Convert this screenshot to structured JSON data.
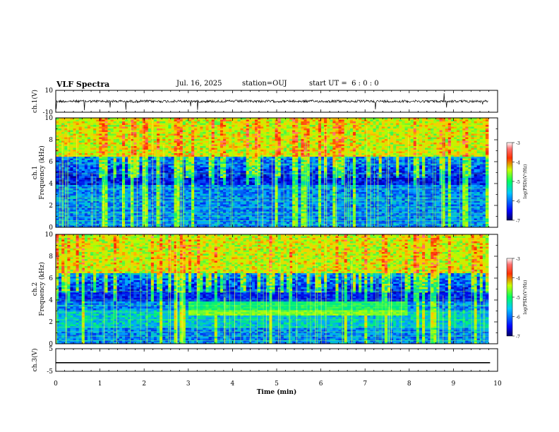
{
  "header": {
    "title": "VLF Spectra",
    "date": "Jul. 16, 2025",
    "station": "station=OUJ",
    "start": "start UT =  6 : 0 : 0"
  },
  "chart_data": [
    {
      "type": "line",
      "ylabel": "ch.1(V)",
      "ylim": [
        -10,
        10
      ],
      "yticks": [
        "10",
        "-10"
      ],
      "description_series": "waveform near 0 V with sparse spikes to about -10 V"
    },
    {
      "type": "heatmap",
      "xlabel": "Time (min)",
      "ylabel": "ch.1 Frequency (kHz)",
      "xlim": [
        0,
        10
      ],
      "ylim": [
        0,
        10
      ],
      "yticks": [
        "0",
        "2",
        "4",
        "6",
        "8",
        "10"
      ],
      "colorbar": {
        "label": "log(PSD)(V²/Hz)",
        "range": [
          -7,
          -3
        ],
        "ticks": [
          "-3",
          "-4",
          "-5",
          "-6",
          "-7"
        ]
      },
      "colors": [
        "#00007f",
        "#0000ff",
        "#00ffff",
        "#7fff00",
        "#ffff00",
        "#ff0000",
        "#ffffff"
      ]
    },
    {
      "type": "heatmap",
      "xlabel": "Time (min)",
      "ylabel": "ch.2 Frequency (kHz)",
      "xlim": [
        0,
        10
      ],
      "ylim": [
        0,
        10
      ],
      "yticks": [
        "0",
        "2",
        "4",
        "6",
        "8",
        "10"
      ],
      "colorbar": {
        "label": "log(PSD)(V²/Hz)",
        "range": [
          -7,
          -3
        ],
        "ticks": [
          "-3",
          "-4",
          "-5",
          "-6",
          "-7"
        ]
      },
      "colors": [
        "#00007f",
        "#0000ff",
        "#00ffff",
        "#7fff00",
        "#ffff00",
        "#ff0000",
        "#ffffff"
      ]
    },
    {
      "type": "line",
      "ylabel": "ch.3(V)",
      "xlabel": "Time (min)",
      "ylim": [
        -5,
        5
      ],
      "yticks": [
        "5",
        "-5"
      ],
      "xlim": [
        0,
        10
      ],
      "xticks": [
        "0",
        "1",
        "2",
        "3",
        "4",
        "5",
        "6",
        "7",
        "8",
        "9",
        "10"
      ],
      "series": [
        {
          "x": [
            0,
            9.83
          ],
          "y": [
            -1.2,
            -1.2
          ]
        }
      ]
    }
  ]
}
